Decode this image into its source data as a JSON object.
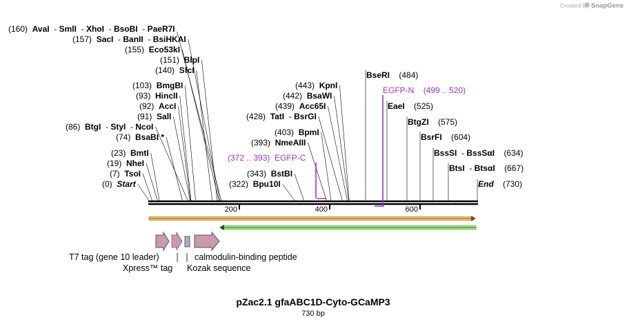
{
  "credit": "Created by",
  "brand": "SnapGene",
  "title": "pZac2.1 gfaABC1D-Cyto-GCaMP3",
  "length_label": "730 bp",
  "ruler": [
    {
      "bp": 200,
      "label": "200"
    },
    {
      "bp": 400,
      "label": "400"
    },
    {
      "bp": 600,
      "label": "600"
    }
  ],
  "sites": [
    {
      "pos": "(160)",
      "bp": 160,
      "names": [
        "AvaI",
        "SmlI",
        "XhoI",
        "BsoBI",
        "PaeR7I"
      ]
    },
    {
      "pos": "(157)",
      "bp": 157,
      "names": [
        "SacI",
        "BanII",
        "BsiHKAI"
      ]
    },
    {
      "pos": "(155)",
      "bp": 155,
      "names": [
        "Eco53kI"
      ]
    },
    {
      "pos": "(151)",
      "bp": 151,
      "names": [
        "BlpI"
      ]
    },
    {
      "pos": "(140)",
      "bp": 140,
      "names": [
        "SfcI"
      ]
    },
    {
      "pos": "(103)",
      "bp": 103,
      "names": [
        "BmgBI"
      ]
    },
    {
      "pos": "(93)",
      "bp": 93,
      "names": [
        "HincII"
      ]
    },
    {
      "pos": "(92)",
      "bp": 92,
      "names": [
        "AccI"
      ]
    },
    {
      "pos": "(91)",
      "bp": 91,
      "names": [
        "SalI"
      ]
    },
    {
      "pos": "(86)",
      "bp": 86,
      "names": [
        "BtgI",
        "StyI",
        "NcoI"
      ]
    },
    {
      "pos": "(74)",
      "bp": 74,
      "names": [
        "BsaBI *"
      ]
    },
    {
      "pos": "(23)",
      "bp": 23,
      "names": [
        "BmtI"
      ]
    },
    {
      "pos": "(19)",
      "bp": 19,
      "names": [
        "NheI"
      ]
    },
    {
      "pos": "(7)",
      "bp": 7,
      "names": [
        "TsoI"
      ]
    },
    {
      "pos": "(0)",
      "bp": 0,
      "names": [
        "Start"
      ]
    },
    {
      "pos": "(443)",
      "bp": 443,
      "names": [
        "KpnI"
      ]
    },
    {
      "pos": "(442)",
      "bp": 442,
      "names": [
        "BsaWI"
      ]
    },
    {
      "pos": "(439)",
      "bp": 439,
      "names": [
        "Acc65I"
      ]
    },
    {
      "pos": "(428)",
      "bp": 428,
      "names": [
        "TatI",
        "BsrGI"
      ]
    },
    {
      "pos": "(403)",
      "bp": 403,
      "names": [
        "BpmI"
      ]
    },
    {
      "pos": "(393)",
      "bp": 393,
      "names": [
        "NmeAIII"
      ]
    },
    {
      "pos": "(343)",
      "bp": 343,
      "names": [
        "BstBI"
      ]
    },
    {
      "pos": "(322)",
      "bp": 322,
      "names": [
        "Bpu10I"
      ]
    },
    {
      "pos": "(484)",
      "bp": 484,
      "names": [
        "BseRI"
      ]
    },
    {
      "pos": "(525)",
      "bp": 525,
      "names": [
        "EaeI"
      ]
    },
    {
      "pos": "(575)",
      "bp": 575,
      "names": [
        "BtgZI"
      ]
    },
    {
      "pos": "(604)",
      "bp": 604,
      "names": [
        "BsrFI"
      ]
    },
    {
      "pos": "(634)",
      "bp": 634,
      "names": [
        "BssSI",
        "BssSαI"
      ]
    },
    {
      "pos": "(667)",
      "bp": 667,
      "names": [
        "BtsI",
        "BtsαI"
      ]
    },
    {
      "pos": "(730)",
      "bp": 730,
      "names": [
        "End"
      ]
    }
  ],
  "primers": [
    {
      "name": "EGFP-C",
      "range": "(372 .. 393)",
      "start": 372,
      "end": 393
    },
    {
      "name": "EGFP-N",
      "range": "(499 .. 520)",
      "start": 499,
      "end": 520
    }
  ],
  "features": [
    {
      "name": "T7 tag (gene 10 leader)"
    },
    {
      "name": "Xpress™ tag"
    },
    {
      "name": "Kozak sequence"
    },
    {
      "name": "calmodulin-binding peptide"
    }
  ],
  "colors": {
    "backbone": "#000000",
    "primer": "#a030c0",
    "orf_forward": "#e0a020",
    "orf_reverse": "#40b020",
    "feature_fill": "#c89ab0",
    "feature_stroke": "#6a4a5a",
    "kozak_fill": "#a8b0c0"
  }
}
